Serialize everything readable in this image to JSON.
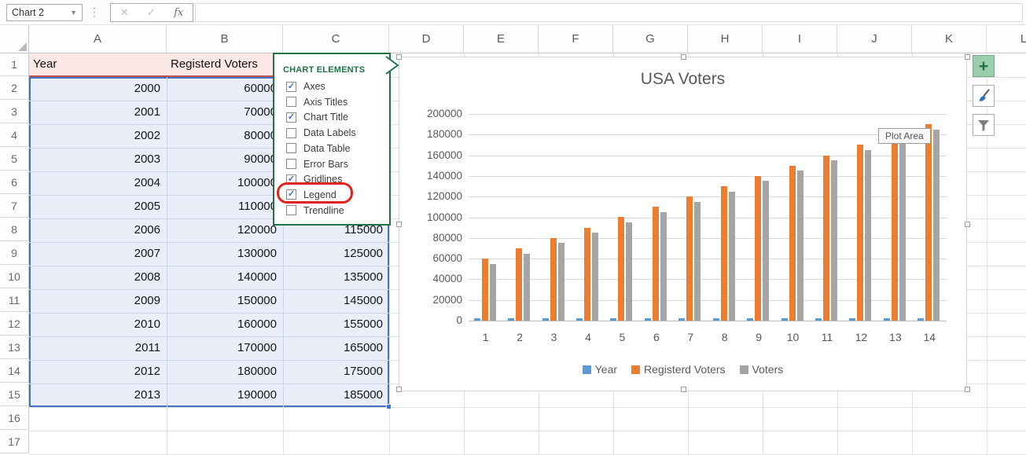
{
  "toolbar": {
    "name_box_value": "Chart 2",
    "formula_bar_value": "",
    "cancel_glyph": "✕",
    "enter_glyph": "✓",
    "fx_glyph": "fx"
  },
  "sheet": {
    "columns": [
      "A",
      "B",
      "C",
      "D",
      "E",
      "F",
      "G",
      "H",
      "I",
      "J",
      "K",
      "L"
    ],
    "row_numbers": [
      "1",
      "2",
      "3",
      "4",
      "5",
      "6",
      "7",
      "8",
      "9",
      "10",
      "11",
      "12",
      "13",
      "14",
      "15",
      "16",
      "17"
    ],
    "table": {
      "headers": [
        "Year",
        "Registerd Voters",
        "Voters"
      ],
      "rows": [
        [
          2000,
          60000,
          55000
        ],
        [
          2001,
          70000,
          65000
        ],
        [
          2002,
          80000,
          75000
        ],
        [
          2003,
          90000,
          85000
        ],
        [
          2004,
          100000,
          95000
        ],
        [
          2005,
          110000,
          105000
        ],
        [
          2006,
          120000,
          115000
        ],
        [
          2007,
          130000,
          125000
        ],
        [
          2008,
          140000,
          135000
        ],
        [
          2009,
          150000,
          145000
        ],
        [
          2010,
          160000,
          155000
        ],
        [
          2011,
          170000,
          165000
        ],
        [
          2012,
          180000,
          175000
        ],
        [
          2013,
          190000,
          185000
        ]
      ]
    }
  },
  "popup": {
    "title": "CHART ELEMENTS",
    "items": [
      {
        "label": "Axes",
        "checked": true,
        "highlighted": false
      },
      {
        "label": "Axis Titles",
        "checked": false,
        "highlighted": false
      },
      {
        "label": "Chart Title",
        "checked": true,
        "highlighted": false
      },
      {
        "label": "Data Labels",
        "checked": false,
        "highlighted": false
      },
      {
        "label": "Data Table",
        "checked": false,
        "highlighted": false
      },
      {
        "label": "Error Bars",
        "checked": false,
        "highlighted": false
      },
      {
        "label": "Gridlines",
        "checked": true,
        "highlighted": false
      },
      {
        "label": "Legend",
        "checked": true,
        "highlighted": true
      },
      {
        "label": "Trendline",
        "checked": false,
        "highlighted": false
      }
    ],
    "highlight_color": "#e0241b",
    "accent_color": "#217346"
  },
  "chart_data": {
    "type": "bar",
    "title": "USA Voters",
    "categories": [
      "1",
      "2",
      "3",
      "4",
      "5",
      "6",
      "7",
      "8",
      "9",
      "10",
      "11",
      "12",
      "13",
      "14"
    ],
    "series": [
      {
        "name": "Year",
        "color": "#5B9BD5",
        "values": [
          2000,
          2001,
          2002,
          2003,
          2004,
          2005,
          2006,
          2007,
          2008,
          2009,
          2010,
          2011,
          2012,
          2013
        ]
      },
      {
        "name": "Registerd Voters",
        "color": "#ED7D31",
        "values": [
          60000,
          70000,
          80000,
          90000,
          100000,
          110000,
          120000,
          130000,
          140000,
          150000,
          160000,
          170000,
          180000,
          190000
        ]
      },
      {
        "name": "Voters",
        "color": "#A5A5A5",
        "values": [
          55000,
          65000,
          75000,
          85000,
          95000,
          105000,
          115000,
          125000,
          135000,
          145000,
          155000,
          165000,
          175000,
          185000
        ]
      }
    ],
    "ylim": [
      0,
      200000
    ],
    "yticks": [
      0,
      20000,
      40000,
      60000,
      80000,
      100000,
      120000,
      140000,
      160000,
      180000,
      200000
    ],
    "grid": true,
    "legend_position": "bottom"
  },
  "chart_ui": {
    "tooltip": "Plot Area",
    "selection_handles": true
  },
  "side_buttons": [
    {
      "label": "chart-elements",
      "icon": "plus-icon",
      "active": true
    },
    {
      "label": "chart-styles",
      "icon": "brush-icon",
      "active": false
    },
    {
      "label": "chart-filters",
      "icon": "funnel-icon",
      "active": false
    }
  ]
}
